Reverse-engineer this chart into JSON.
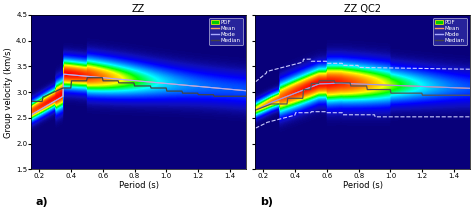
{
  "title_left": "ZZ",
  "title_right": "ZZ QC2",
  "xlabel": "Period (s)",
  "ylabel": "Group velocity (km/s)",
  "xlim": [
    0.15,
    1.5
  ],
  "ylim": [
    1.5,
    4.5
  ],
  "xticks": [
    0.2,
    0.4,
    0.6,
    0.8,
    1.0,
    1.2,
    1.4
  ],
  "yticks": [
    1.5,
    2.0,
    2.5,
    3.0,
    3.5,
    4.0,
    4.5
  ],
  "label_a": "a)",
  "label_b": "b)",
  "bg_color": "#1a0080",
  "legend_labels": [
    "PDF",
    "Mean",
    "Mode",
    "Median"
  ],
  "mean_color": "#ff9966",
  "mode_color": "#aaaaff",
  "median_color": "#444444",
  "dashed_color": "#ccccff",
  "mean_color2": "#ff8844",
  "mode_color2": "#9999ee",
  "median_color2": "#555555"
}
